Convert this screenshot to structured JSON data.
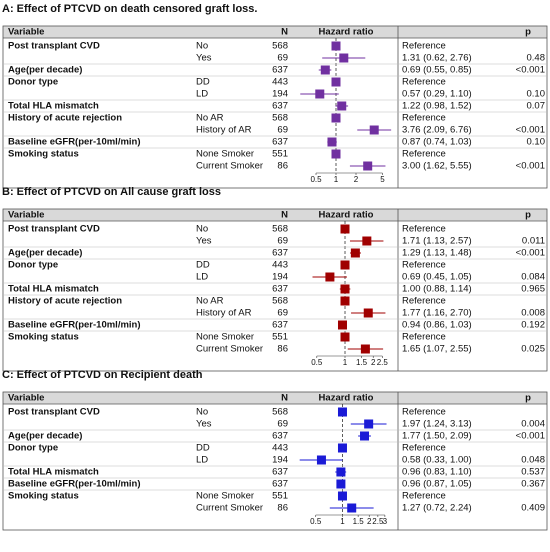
{
  "chart_data": [
    {
      "type": "forest",
      "title": "A: Effect of PTCVD on death censored graft loss.",
      "columns": [
        "Variable",
        "N",
        "Hazard ratio",
        "p"
      ],
      "variables": [
        "Post transplant CVD",
        null,
        "Age(per decade)",
        "Donor type",
        null,
        "Total HLA mismatch",
        "History of acute rejection",
        null,
        "Baseline eGFR(per-10ml/min)",
        "Smoking status",
        null
      ],
      "subgroups": [
        "No",
        "Yes",
        null,
        "DD",
        "LD",
        null,
        "No AR",
        "History of AR",
        null,
        "None Smoker",
        "Current Smoker"
      ],
      "n": [
        568,
        69,
        637,
        443,
        194,
        637,
        568,
        69,
        637,
        551,
        86
      ],
      "values": [
        1,
        1.31,
        0.69,
        1,
        0.57,
        1.22,
        1,
        3.76,
        0.87,
        1,
        3.0
      ],
      "lower": [
        null,
        0.62,
        0.55,
        null,
        0.29,
        0.98,
        null,
        2.09,
        0.74,
        null,
        1.62
      ],
      "upper": [
        null,
        2.76,
        0.85,
        null,
        1.1,
        1.52,
        null,
        6.76,
        1.03,
        null,
        5.55
      ],
      "value_labels": [
        "Reference",
        "1.31 (0.62, 2.76)",
        "0.69 (0.55, 0.85)",
        "Reference",
        "0.57 (0.29, 1.10)",
        "1.22 (0.98, 1.52)",
        "Reference",
        "3.76 (2.09, 6.76)",
        "0.87 (0.74, 1.03)",
        "Reference",
        "3.00 (1.62, 5.55)"
      ],
      "p": [
        null,
        "0.48",
        "<0.001",
        null,
        "0.10",
        "0.07",
        null,
        "<0.001",
        "0.10",
        null,
        "<0.001"
      ],
      "color": "#7030a0",
      "log_x": true,
      "xlim": [
        0.25,
        8
      ],
      "xticks": [
        0.5,
        1,
        2,
        5
      ],
      "reference_line": 1
    },
    {
      "type": "forest",
      "title": "B: Effect of PTCVD on All cause graft loss",
      "columns": [
        "Variable",
        "N",
        "Hazard ratio",
        "p"
      ],
      "variables": [
        "Post transplant CVD",
        null,
        "Age(per decade)",
        "Donor type",
        null,
        "Total HLA mismatch",
        "History of acute rejection",
        null,
        "Baseline eGFR(per-10ml/min)",
        "Smoking status",
        null
      ],
      "subgroups": [
        "No",
        "Yes",
        null,
        "DD",
        "LD",
        null,
        "No AR",
        "History of AR",
        null,
        "None Smoker",
        "Current Smoker"
      ],
      "n": [
        568,
        69,
        637,
        443,
        194,
        637,
        568,
        69,
        637,
        551,
        86
      ],
      "values": [
        1,
        1.71,
        1.29,
        1,
        0.69,
        1.0,
        1,
        1.77,
        0.94,
        1,
        1.65
      ],
      "lower": [
        null,
        1.13,
        1.13,
        null,
        0.45,
        0.88,
        null,
        1.16,
        0.86,
        null,
        1.07
      ],
      "upper": [
        null,
        2.57,
        1.48,
        null,
        1.05,
        1.14,
        null,
        2.7,
        1.03,
        null,
        2.55
      ],
      "value_labels": [
        "Reference",
        "1.71 (1.13, 2.57)",
        "1.29 (1.13, 1.48)",
        "Reference",
        "0.69 (0.45, 1.05)",
        "1.00 (0.88, 1.14)",
        "Reference",
        "1.77 (1.16, 2.70)",
        "0.94 (0.86, 1.03)",
        "Reference",
        "1.65 (1.07, 2.55)"
      ],
      "p": [
        null,
        "0.011",
        "<0.001",
        null,
        "0.084",
        "0.965",
        null,
        "0.008",
        "0.192",
        null,
        "0.025"
      ],
      "color": "#a00000",
      "log_x": true,
      "xlim": [
        0.3,
        3.5
      ],
      "xticks": [
        0.5,
        1,
        1.5,
        2,
        2.5
      ],
      "reference_line": 1
    },
    {
      "type": "forest",
      "title": "C: Effect of PTCVD on Recipient death",
      "columns": [
        "Variable",
        "N",
        "Hazard ratio",
        "p"
      ],
      "variables": [
        "Post transplant CVD",
        null,
        "Age(per decade)",
        "Donor type",
        null,
        "Total HLA mismatch",
        "Baseline eGFR(per-10ml/min)",
        "Smoking status",
        null
      ],
      "subgroups": [
        "No",
        "Yes",
        null,
        "DD",
        "LD",
        null,
        null,
        "None Smoker",
        "Current Smoker"
      ],
      "n": [
        568,
        69,
        637,
        443,
        194,
        637,
        637,
        551,
        86
      ],
      "values": [
        1,
        1.97,
        1.77,
        1,
        0.58,
        0.96,
        0.96,
        1,
        1.27
      ],
      "lower": [
        null,
        1.24,
        1.5,
        null,
        0.33,
        0.83,
        0.87,
        null,
        0.72
      ],
      "upper": [
        null,
        3.13,
        2.09,
        null,
        1.0,
        1.1,
        1.05,
        null,
        2.24
      ],
      "value_labels": [
        "Reference",
        "1.97 (1.24, 3.13)",
        "1.77 (1.50, 2.09)",
        "Reference",
        "0.58 (0.33, 1.00)",
        "0.96 (0.83, 1.10)",
        "0.96 (0.87, 1.05)",
        "Reference",
        "1.27 (0.72, 2.24)"
      ],
      "p": [
        null,
        "0.004",
        "<0.001",
        null,
        "0.048",
        "0.537",
        "0.367",
        null,
        "0.409"
      ],
      "color": "#1a1ad6",
      "log_x": true,
      "xlim": [
        0.3,
        4
      ],
      "xticks": [
        0.5,
        1,
        1.5,
        2,
        2.5,
        3
      ],
      "reference_line": 1
    }
  ]
}
